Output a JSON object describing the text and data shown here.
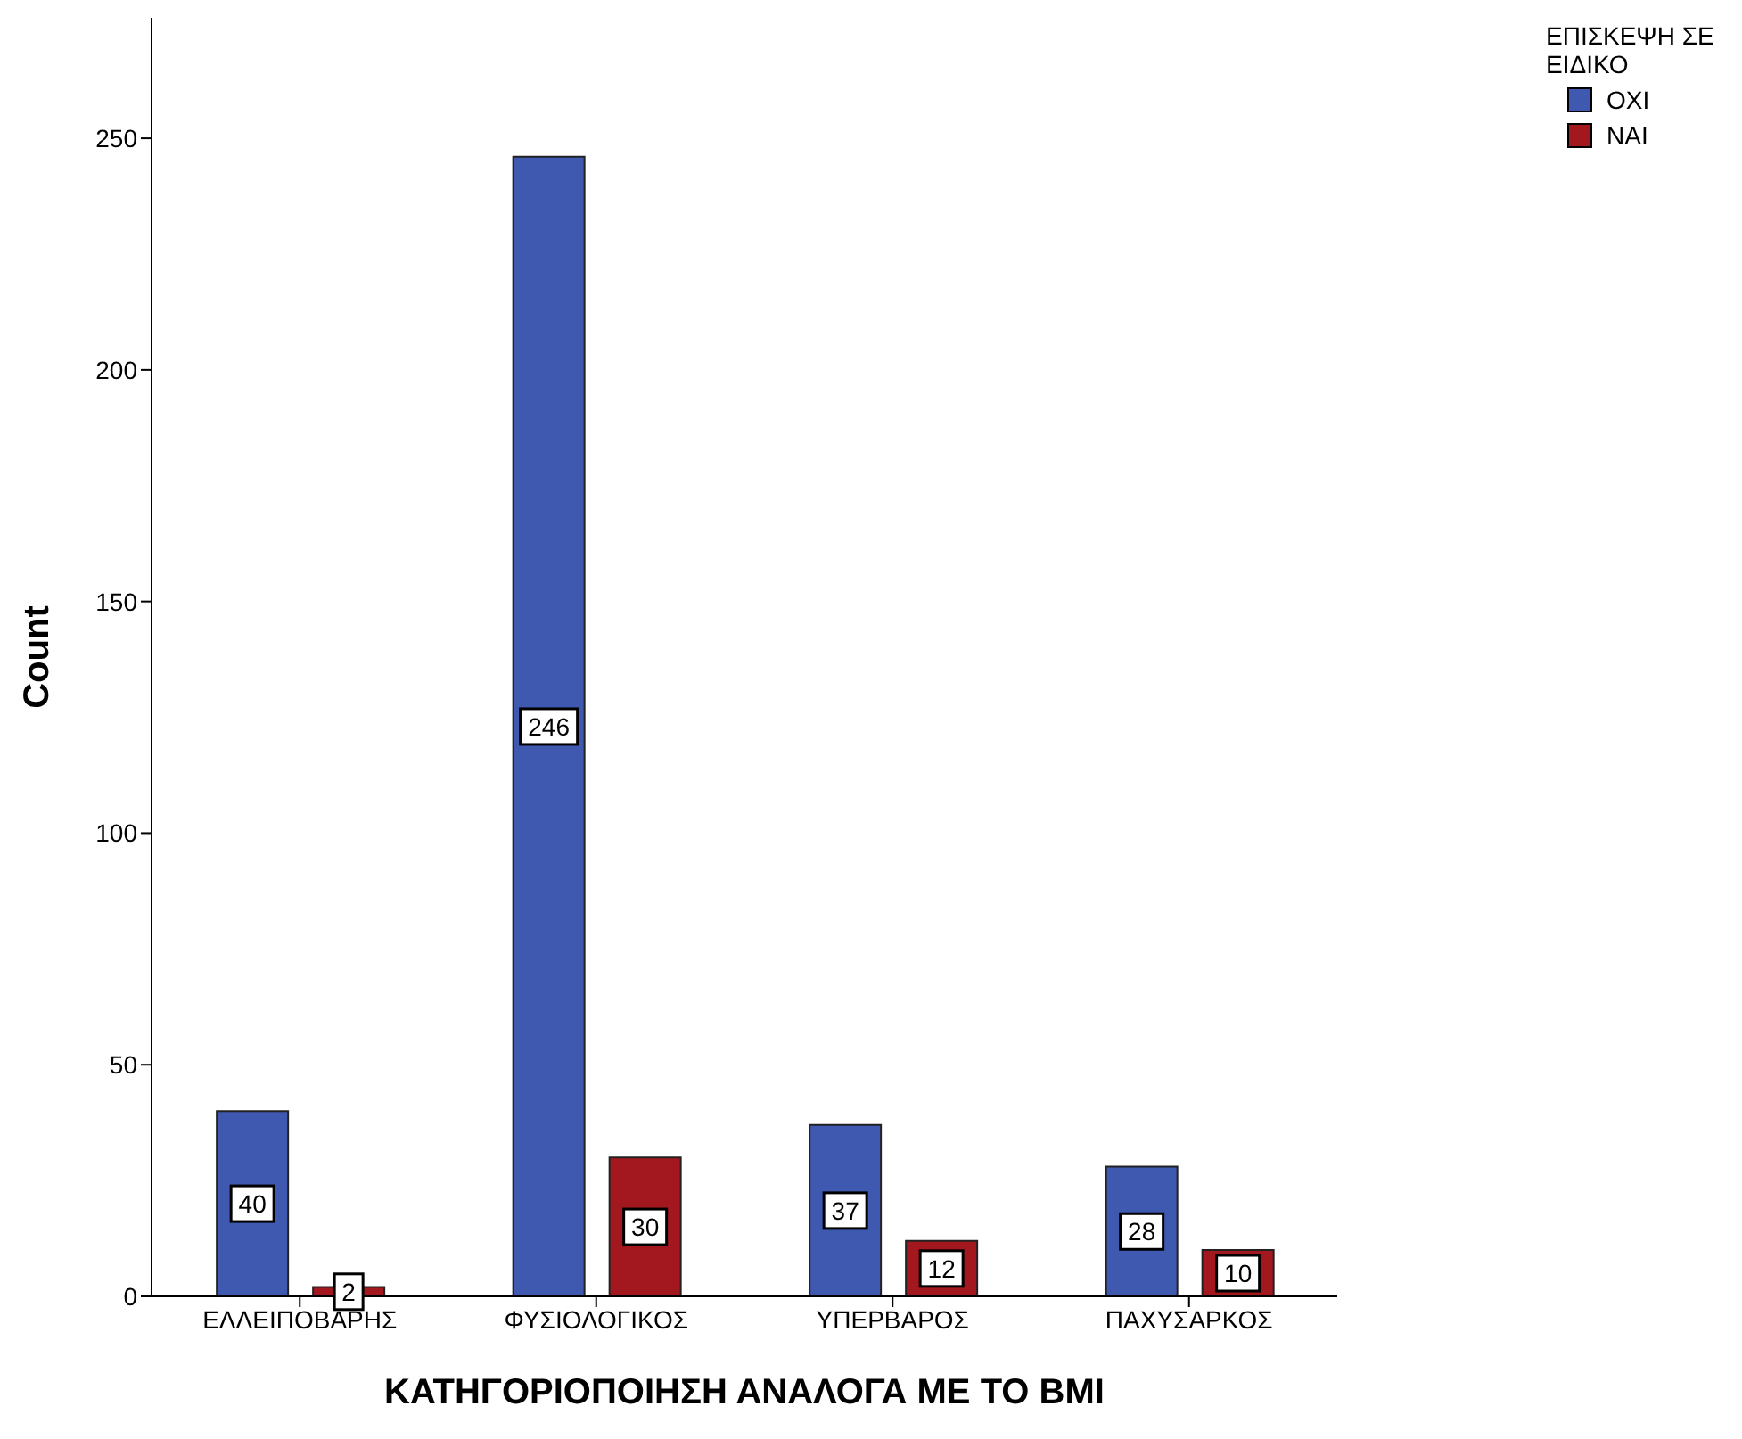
{
  "chart_data": {
    "type": "bar",
    "xlabel": "ΚΑΤΗΓΟΡΙΟΠΟΙΗΣΗ ΑΝΑΛΟΓΑ ΜΕ ΤΟ BMI",
    "ylabel": "Count",
    "legend_title": "ΕΠΙΣΚΕΨΗ ΣΕ ΕΙΔΙΚΟ",
    "categories": [
      "ΕΛΛΕΙΠΟΒΑΡΗΣ",
      "ΦΥΣΙΟΛΟΓΙΚΟΣ",
      "ΥΠΕΡΒΑΡΟΣ",
      "ΠΑΧΥΣΑΡΚΟΣ"
    ],
    "series": [
      {
        "name": "ΟΧΙ",
        "color": "#3f58b0",
        "values": [
          40,
          246,
          37,
          28
        ]
      },
      {
        "name": "ΝΑΙ",
        "color": "#a3181e",
        "values": [
          2,
          30,
          12,
          10
        ]
      }
    ],
    "ylim": [
      0,
      276
    ],
    "yticks": [
      0,
      50,
      100,
      150,
      200,
      250
    ],
    "data_labels": true,
    "legend": "top right",
    "grid": false
  }
}
